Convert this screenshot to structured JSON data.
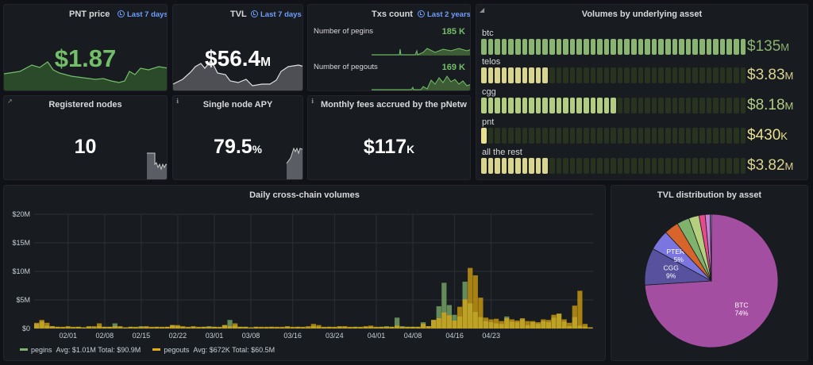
{
  "pnt_price": {
    "title": "PNT price",
    "badge": "Last 7 days",
    "value": "$1.87"
  },
  "tvl": {
    "title": "TVL",
    "badge": "Last 7 days",
    "value": "$56.4",
    "unit": "M"
  },
  "txs": {
    "title": "Txs count",
    "badge": "Last 2 years",
    "pegins_label": "Number of pegins",
    "pegins_value": "185 K",
    "pegouts_label": "Number of pegouts",
    "pegouts_value": "169 K"
  },
  "volumes": {
    "title": "Volumes by underlying asset",
    "rows": [
      {
        "label": "btc",
        "value": "$135",
        "unit": "M",
        "lit": 39,
        "total": 39,
        "color": "#8ab472"
      },
      {
        "label": "telos",
        "value": "$3.83",
        "unit": "M",
        "lit": 10,
        "total": 39,
        "color": "#d9d48e"
      },
      {
        "label": "cgg",
        "value": "$8.18",
        "unit": "M",
        "lit": 20,
        "total": 39,
        "color": "#b2cc82"
      },
      {
        "label": "pnt",
        "value": "$430",
        "unit": "K",
        "lit": 1,
        "total": 39,
        "color": "#e8e08f"
      },
      {
        "label": "all the rest",
        "value": "$3.82",
        "unit": "M",
        "lit": 10,
        "total": 39,
        "color": "#d9d48e"
      }
    ]
  },
  "registered_nodes": {
    "title": "Registered nodes",
    "value": "10"
  },
  "apy": {
    "title": "Single node APY",
    "value": "79.5",
    "unit": "%"
  },
  "fees": {
    "title": "Monthly fees accrued by the pNetw",
    "value": "$117",
    "unit": "K"
  },
  "daily": {
    "title": "Daily cross-chain volumes",
    "legend": {
      "pegins": "pegins",
      "pegins_stats": "Avg: $1.01M  Total: $90.9M",
      "pegouts": "pegouts",
      "pegouts_stats": "Avg: $672K  Total: $60.5M",
      "pegins_color": "#7eb26d",
      "pegouts_color": "#e5ac0e"
    }
  },
  "tvl_dist": {
    "title": "TVL distribution by asset"
  },
  "chart_data": [
    {
      "type": "bar",
      "title": "Daily cross-chain volumes",
      "ylim": [
        0,
        20
      ],
      "y_ticks": [
        "$0",
        "$5M",
        "$10M",
        "$15M",
        "$20M"
      ],
      "x_ticks": [
        "02/01",
        "02/08",
        "02/15",
        "02/22",
        "03/01",
        "03/08",
        "03/16",
        "03/24",
        "04/01",
        "04/08",
        "04/16",
        "04/23"
      ],
      "series": [
        {
          "name": "pegins",
          "color": "#7eb26d",
          "values": [
            0.8,
            1.2,
            0.5,
            0.4,
            0.3,
            0.2,
            0.3,
            0.2,
            0.3,
            0.2,
            0.3,
            0.2,
            0.4,
            0.3,
            0.3,
            0.9,
            0.3,
            0.2,
            0.3,
            0.2,
            0.4,
            0.3,
            0.2,
            0.3,
            0.2,
            0.3,
            0.6,
            0.4,
            0.3,
            0.2,
            0.3,
            0.2,
            0.3,
            0.4,
            0.3,
            0.2,
            0.6,
            1.5,
            0.5,
            0.3,
            0.3,
            0.2,
            0.3,
            0.2,
            0.2,
            0.3,
            0.2,
            0.2,
            0.3,
            0.2,
            0.3,
            0.2,
            0.2,
            0.4,
            0.3,
            0.2,
            0.3,
            0.2,
            0.3,
            0.3,
            0.2,
            0.3,
            0.2,
            0.3,
            0.3,
            0.2,
            0.3,
            0.4,
            0.3,
            1.9,
            0.4,
            0.3,
            0.3,
            0.3,
            1.1,
            0.4,
            1.5,
            3.9,
            8.0,
            4.1,
            2.4,
            2.1,
            8.2,
            4.4,
            2.9,
            2.0,
            1.3,
            1.1,
            0.9,
            0.8,
            2.1,
            1.2,
            1.1,
            1.6,
            0.6,
            1.1,
            0.8,
            1.3,
            1.1,
            1.9,
            2.6,
            1.2,
            0.4,
            2.0,
            0.5,
            0.3,
            0.2
          ]
        },
        {
          "name": "pegouts",
          "color": "#e5ac0e",
          "values": [
            1.0,
            1.5,
            1.0,
            0.4,
            0.3,
            0.3,
            0.4,
            0.3,
            0.3,
            0.2,
            0.4,
            0.4,
            0.9,
            0.3,
            0.3,
            0.4,
            0.4,
            0.2,
            0.3,
            0.3,
            0.3,
            0.4,
            0.3,
            0.3,
            0.3,
            0.3,
            0.6,
            0.6,
            0.4,
            0.3,
            0.4,
            0.3,
            0.3,
            0.3,
            0.3,
            0.3,
            0.6,
            0.4,
            0.9,
            0.3,
            0.3,
            0.2,
            0.3,
            0.3,
            0.3,
            0.3,
            0.3,
            0.3,
            0.4,
            0.3,
            0.3,
            0.3,
            0.4,
            0.8,
            0.6,
            0.3,
            0.3,
            0.3,
            0.4,
            0.4,
            0.3,
            0.3,
            0.3,
            0.4,
            0.5,
            0.3,
            0.3,
            0.3,
            0.3,
            0.5,
            0.3,
            0.3,
            0.3,
            0.3,
            0.8,
            0.4,
            1.5,
            1.8,
            2.8,
            2.3,
            1.4,
            3.8,
            5.1,
            10.6,
            9.3,
            5.4,
            1.9,
            1.6,
            1.7,
            1.3,
            1.8,
            1.6,
            1.4,
            1.8,
            1.3,
            1.3,
            1.1,
            1.6,
            1.5,
            2.4,
            2.6,
            1.6,
            1.0,
            4.0,
            6.6,
            0.8,
            0.2
          ]
        }
      ]
    },
    {
      "type": "pie",
      "title": "TVL distribution by asset",
      "slices": [
        {
          "label": "BTC",
          "pct": "74%",
          "value": 74,
          "color": "#a44ea2",
          "labeled": true
        },
        {
          "label": "CGG",
          "pct": "9%",
          "value": 9,
          "color": "#58519d",
          "labeled": true
        },
        {
          "label": "PTERIA",
          "pct": "5%",
          "value": 5,
          "color": "#7b75e0",
          "labeled": true
        },
        {
          "label": "",
          "pct": "",
          "value": 3.5,
          "color": "#d7642b",
          "labeled": false
        },
        {
          "label": "",
          "pct": "",
          "value": 3,
          "color": "#7eb26d",
          "labeled": false
        },
        {
          "label": "",
          "pct": "",
          "value": 2.5,
          "color": "#b5cf7f",
          "labeled": false
        },
        {
          "label": "",
          "pct": "",
          "value": 1.5,
          "color": "#e64b8c",
          "labeled": false
        },
        {
          "label": "",
          "pct": "",
          "value": 1.2,
          "color": "#c882d8",
          "labeled": false
        },
        {
          "label": "",
          "pct": "",
          "value": 0.3,
          "color": "#9ab7f0",
          "labeled": false
        }
      ]
    }
  ]
}
